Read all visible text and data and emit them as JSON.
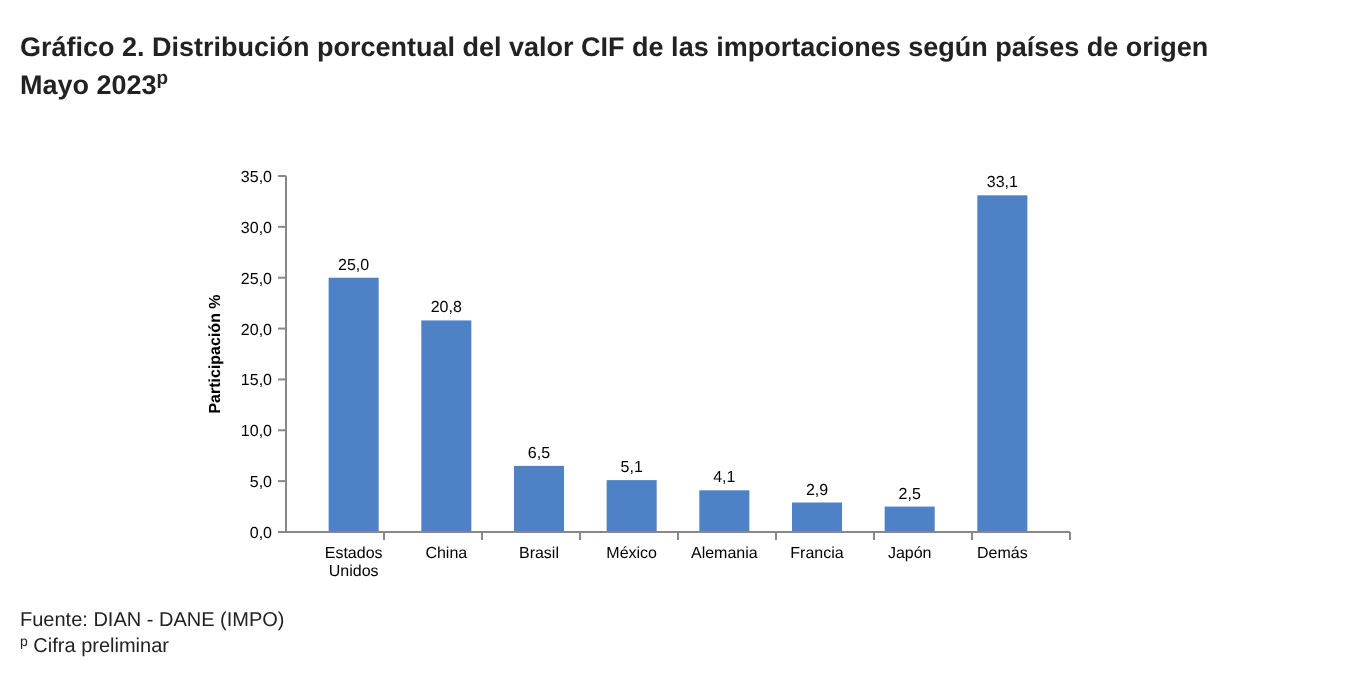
{
  "chart_data": {
    "type": "bar",
    "title": "Gráfico 2. Distribución porcentual del valor CIF de las importaciones según países de origen",
    "subtitle": "Mayo 2023$^{p}$",
    "ylabel": "Participación %",
    "categories": [
      "Estados Unidos",
      "China",
      "Brasil",
      "México",
      "Alemania",
      "Francia",
      "Japón",
      "Demás"
    ],
    "values": [
      25.0,
      20.8,
      6.5,
      5.1,
      4.1,
      2.9,
      2.5,
      33.1
    ],
    "value_labels": [
      "25,0",
      "20,8",
      "6,5",
      "5,1",
      "4,1",
      "2,9",
      "2,5",
      "33,1"
    ],
    "color": "#4f81c7",
    "ylim": [
      0,
      35
    ],
    "yticks": [
      {
        "value": 0,
        "label": "0,0"
      },
      {
        "value": 5,
        "label": "5,0"
      },
      {
        "value": 10,
        "label": "10,0"
      },
      {
        "value": 15,
        "label": "15,0"
      },
      {
        "value": 20,
        "label": "20,0"
      },
      {
        "value": 25,
        "label": "25,0"
      },
      {
        "value": 30,
        "label": "30,0"
      },
      {
        "value": 35,
        "label": "35,0"
      }
    ],
    "grid": false,
    "annotations": [
      "Fuente: DIAN - DANE (IMPO)",
      "$^{p}$ Cifra preliminar"
    ]
  }
}
